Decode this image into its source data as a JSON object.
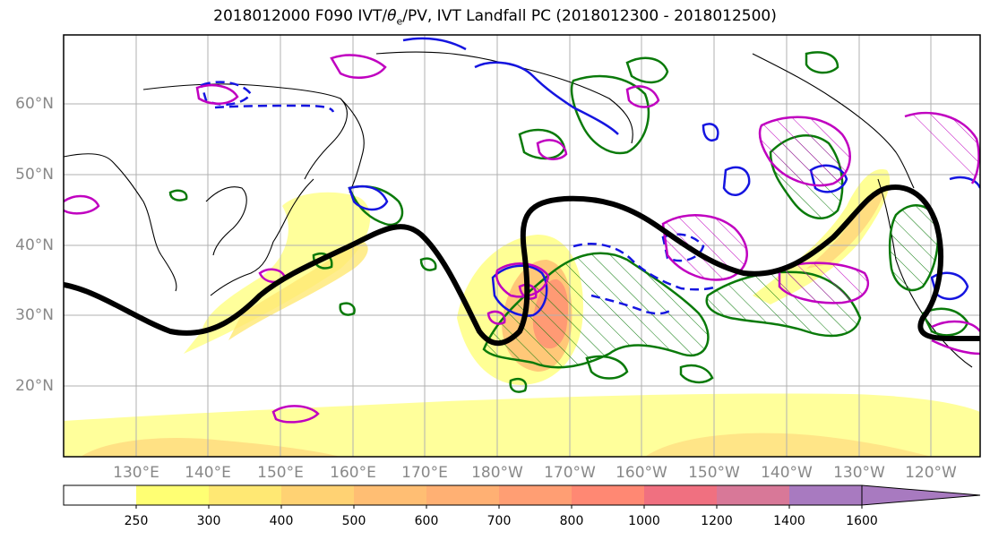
{
  "title_prefix": "2018012000 F090 IVT/",
  "title_symbol": "θ",
  "title_subscript": "e",
  "title_suffix": "/PV, IVT Landfall PC (2018012300 - 2018012500)",
  "lat_labels": [
    "60°N",
    "50°N",
    "40°N",
    "30°N",
    "20°N"
  ],
  "lon_labels": [
    "130°E",
    "140°E",
    "150°E",
    "160°E",
    "170°E",
    "180°W",
    "170°W",
    "160°W",
    "150°W",
    "140°W",
    "130°W",
    "120°W"
  ],
  "colorbar": {
    "ticks": [
      "250",
      "300",
      "400",
      "500",
      "600",
      "700",
      "800",
      "1000",
      "1200",
      "1400",
      "1600"
    ],
    "colors": [
      "#ffffff",
      "#ffff73",
      "#ffe873",
      "#ffd273",
      "#ffbe73",
      "#ffb073",
      "#ff9e73",
      "#ff8873",
      "#f07080",
      "#d87898",
      "#a87ac0"
    ]
  },
  "legend_colors": {
    "jet_contour": "#000000",
    "theta_e_positive": "#0a7a0a",
    "pv_contour": "#1515e0",
    "ivt_pc_contour": "#c000c0"
  }
}
